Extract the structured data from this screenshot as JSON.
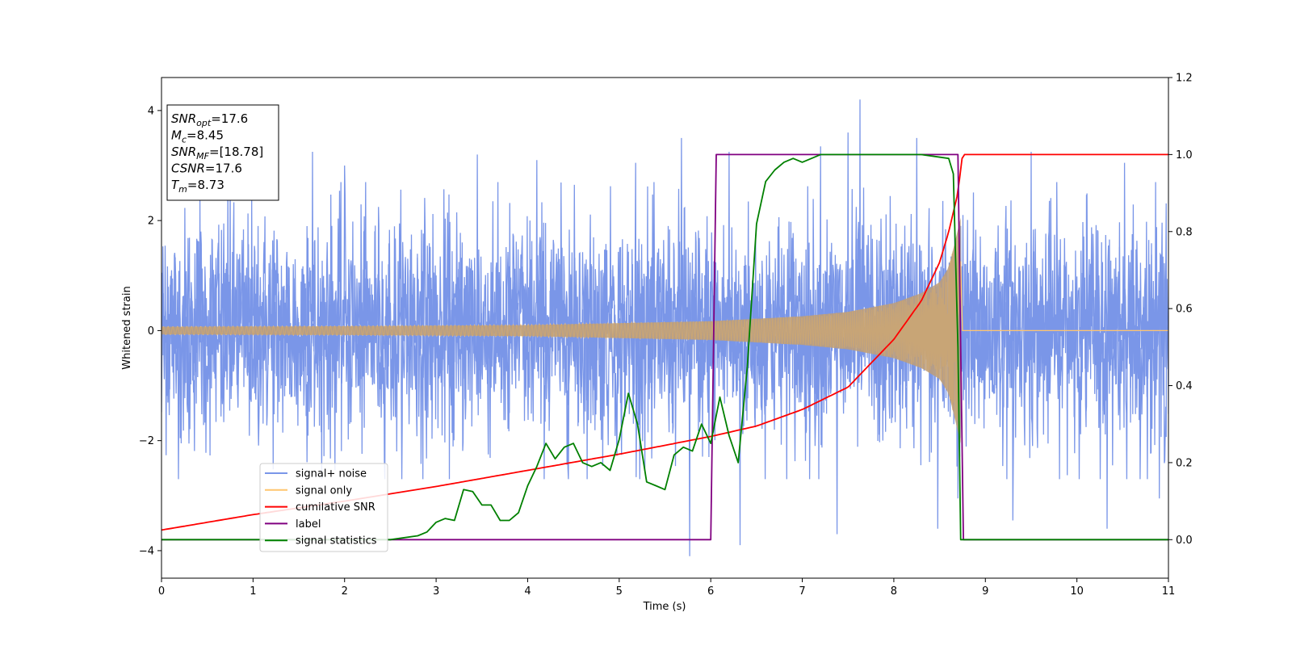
{
  "chart_data": {
    "type": "line",
    "xlabel": "Time (s)",
    "ylabel": "Whitened strain",
    "xlim": [
      0,
      11
    ],
    "ylim_left": [
      -4.5,
      4.6
    ],
    "ylim_right": [
      -0.1,
      1.2
    ],
    "x_ticks": [
      0,
      1,
      2,
      3,
      4,
      5,
      6,
      7,
      8,
      9,
      10,
      11
    ],
    "x_tick_labels": [
      "0",
      "1",
      "2",
      "3",
      "4",
      "5",
      "6",
      "7",
      "8",
      "9",
      "10",
      "11"
    ],
    "y_ticks_left": [
      -4,
      -2,
      0,
      2,
      4
    ],
    "y_tick_labels_left": [
      "−4",
      "−2",
      "0",
      "2",
      "4"
    ],
    "y_ticks_right": [
      0.0,
      0.2,
      0.4,
      0.6,
      0.8,
      1.0,
      1.2
    ],
    "y_tick_labels_right": [
      "0.0",
      "0.2",
      "0.4",
      "0.6",
      "0.8",
      "1.0",
      "1.2"
    ],
    "grid": false,
    "legend_placement": "lower-left",
    "colors": {
      "signal_noise": "#7a96e8",
      "signal_only": "#ffc56f",
      "overlap": "#be9f78",
      "cumulative_snr": "#ff0000",
      "label": "#800080",
      "signal_statistics": "#008000"
    },
    "info_box": {
      "lines": [
        {
          "base": "SNR",
          "sub": "opt",
          "value": "=17.6"
        },
        {
          "base": "M",
          "sub": "c",
          "value": "=8.45"
        },
        {
          "base": "SNR",
          "sub": "MF",
          "value": "=[18.78]"
        },
        {
          "base": "CSNR",
          "sub": "",
          "value": "=17.6"
        },
        {
          "base": "T",
          "sub": "m",
          "value": "=8.73"
        }
      ]
    },
    "series": [
      {
        "name": "signal+ noise",
        "axis": "left",
        "style": "noise",
        "x_range": [
          0,
          11
        ],
        "typical_amplitude": 2.0,
        "spikes": [
          [
            0.42,
            2.4
          ],
          [
            0.75,
            3.0
          ],
          [
            1.65,
            3.25
          ],
          [
            2.0,
            3.0
          ],
          [
            3.45,
            3.2
          ],
          [
            3.62,
            2.35
          ],
          [
            4.1,
            3.1
          ],
          [
            5.18,
            3.05
          ],
          [
            5.68,
            3.5
          ],
          [
            6.2,
            3.25
          ],
          [
            7.2,
            3.35
          ],
          [
            7.5,
            3.6
          ],
          [
            7.63,
            4.2
          ],
          [
            8.25,
            3.5
          ],
          [
            9.5,
            3.25
          ],
          [
            10.52,
            3.05
          ],
          [
            5.77,
            -4.1
          ],
          [
            6.32,
            -3.9
          ],
          [
            7.38,
            -3.7
          ],
          [
            8.48,
            -3.6
          ],
          [
            9.3,
            -3.45
          ],
          [
            10.33,
            -3.6
          ],
          [
            10.9,
            -3.05
          ],
          [
            8.7,
            -3.05
          ]
        ]
      },
      {
        "name": "signal only",
        "axis": "left",
        "style": "chirp",
        "x_range": [
          0,
          8.73
        ],
        "envelope": [
          [
            0,
            0.07
          ],
          [
            2,
            0.08
          ],
          [
            4,
            0.1
          ],
          [
            6,
            0.17
          ],
          [
            7,
            0.26
          ],
          [
            7.5,
            0.34
          ],
          [
            8,
            0.5
          ],
          [
            8.3,
            0.68
          ],
          [
            8.5,
            0.88
          ],
          [
            8.6,
            1.15
          ],
          [
            8.68,
            1.7
          ],
          [
            8.73,
            2.05
          ]
        ]
      },
      {
        "name": "cumilative SNR",
        "axis": "right",
        "x": [
          0,
          1,
          2,
          3,
          4,
          5,
          6,
          6.5,
          7,
          7.5,
          8,
          8.3,
          8.5,
          8.6,
          8.7,
          8.75,
          9,
          11
        ],
        "y": [
          0.025,
          0.065,
          0.1,
          0.138,
          0.18,
          0.222,
          0.268,
          0.295,
          0.338,
          0.396,
          0.52,
          0.62,
          0.72,
          0.8,
          0.9,
          1.0,
          1.0,
          1.0
        ]
      },
      {
        "name": "label",
        "axis": "right",
        "x": [
          0,
          6.0,
          6.06,
          8.7,
          8.76,
          11
        ],
        "y": [
          0.0,
          0.0,
          1.0,
          1.0,
          0.0,
          0.0
        ]
      },
      {
        "name": "signal statistics",
        "axis": "right",
        "x": [
          0,
          2.5,
          2.8,
          2.9,
          3.0,
          3.1,
          3.2,
          3.3,
          3.4,
          3.5,
          3.6,
          3.7,
          3.8,
          3.9,
          4.0,
          4.1,
          4.2,
          4.3,
          4.4,
          4.5,
          4.6,
          4.7,
          4.8,
          4.9,
          5.0,
          5.1,
          5.2,
          5.3,
          5.4,
          5.5,
          5.6,
          5.7,
          5.8,
          5.9,
          6.0,
          6.1,
          6.2,
          6.3,
          6.4,
          6.5,
          6.6,
          6.7,
          6.8,
          6.9,
          7.0,
          7.1,
          7.2,
          7.5,
          8.0,
          8.3,
          8.6,
          8.65,
          8.7,
          8.73,
          8.8,
          11
        ],
        "y": [
          0.0,
          0.0,
          0.01,
          0.02,
          0.045,
          0.055,
          0.05,
          0.13,
          0.125,
          0.09,
          0.09,
          0.05,
          0.05,
          0.07,
          0.14,
          0.19,
          0.25,
          0.21,
          0.24,
          0.25,
          0.2,
          0.19,
          0.2,
          0.18,
          0.26,
          0.38,
          0.3,
          0.15,
          0.14,
          0.13,
          0.22,
          0.24,
          0.23,
          0.3,
          0.25,
          0.37,
          0.27,
          0.2,
          0.45,
          0.82,
          0.93,
          0.96,
          0.98,
          0.99,
          0.98,
          0.99,
          1.0,
          1.0,
          1.0,
          1.0,
          0.99,
          0.95,
          0.5,
          0.0,
          0.0,
          0.0
        ]
      }
    ]
  }
}
